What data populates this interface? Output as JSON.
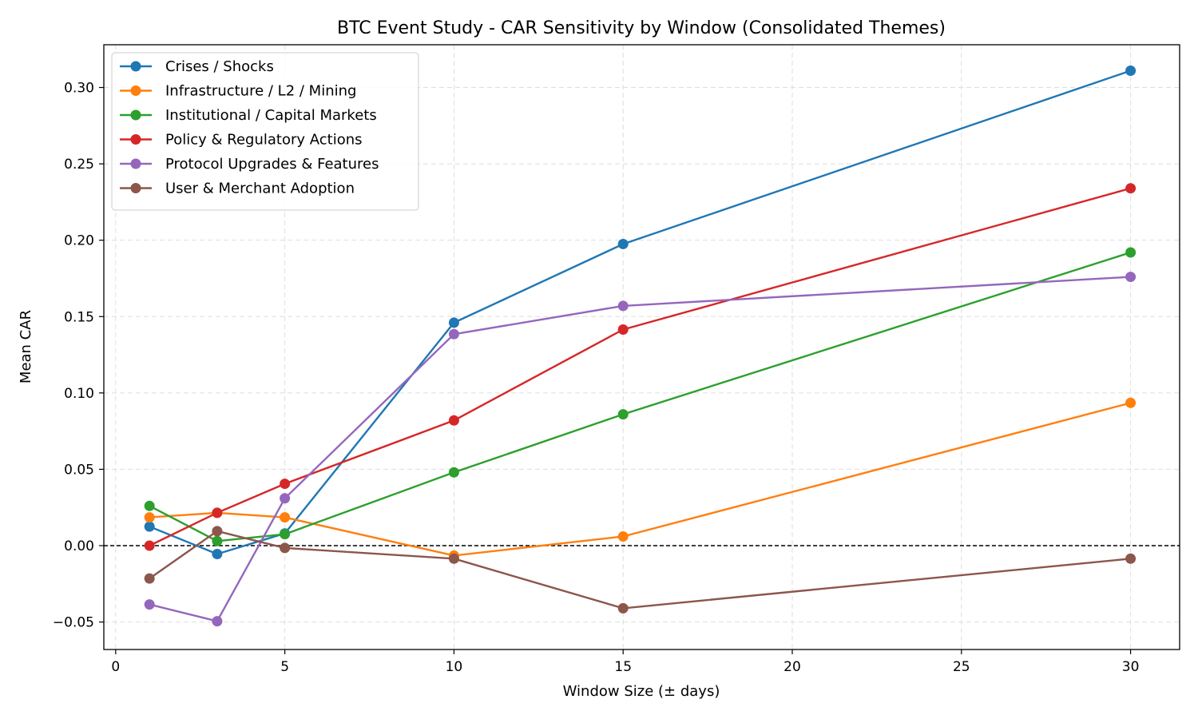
{
  "chart_data": {
    "type": "line",
    "title": "BTC Event Study - CAR Sensitivity by Window (Consolidated Themes)",
    "xlabel": "Window Size (± days)",
    "ylabel": "Mean CAR",
    "x": [
      1,
      3,
      5,
      10,
      15,
      30
    ],
    "xlim": [
      -0.35,
      31.45
    ],
    "ylim": [
      -0.068,
      0.328
    ],
    "xticks": [
      0,
      5,
      10,
      15,
      20,
      25,
      30
    ],
    "xtick_labels": [
      "0",
      "5",
      "10",
      "15",
      "20",
      "25",
      "30"
    ],
    "yticks": [
      -0.05,
      0.0,
      0.05,
      0.1,
      0.15,
      0.2,
      0.25,
      0.3
    ],
    "ytick_labels": [
      "−0.05",
      "0.00",
      "0.05",
      "0.10",
      "0.15",
      "0.20",
      "0.25",
      "0.30"
    ],
    "grid": true,
    "legend_position": "top-left",
    "reference_line": {
      "y": 0,
      "style": "dashed",
      "color": "#000000"
    },
    "series": [
      {
        "name": "Crises / Shocks",
        "color": "#1f77b4",
        "values": [
          0.0125,
          -0.0055,
          0.008,
          0.146,
          0.1975,
          0.311
        ]
      },
      {
        "name": "Infrastructure / L2 / Mining",
        "color": "#ff7f0e",
        "values": [
          0.0185,
          0.0215,
          0.0185,
          -0.0065,
          0.006,
          0.0935
        ]
      },
      {
        "name": "Institutional / Capital Markets",
        "color": "#2ca02c",
        "values": [
          0.026,
          0.003,
          0.0075,
          0.048,
          0.086,
          0.192
        ]
      },
      {
        "name": "Policy & Regulatory Actions",
        "color": "#d62728",
        "values": [
          0.0,
          0.0215,
          0.0405,
          0.082,
          0.1415,
          0.234
        ]
      },
      {
        "name": "Protocol Upgrades & Features",
        "color": "#9467bd",
        "values": [
          -0.0385,
          -0.0495,
          0.031,
          0.1385,
          0.157,
          0.176
        ]
      },
      {
        "name": "User & Merchant Adoption",
        "color": "#8c564b",
        "values": [
          -0.0215,
          0.0095,
          -0.0015,
          -0.0085,
          -0.041,
          -0.0085
        ]
      }
    ]
  }
}
